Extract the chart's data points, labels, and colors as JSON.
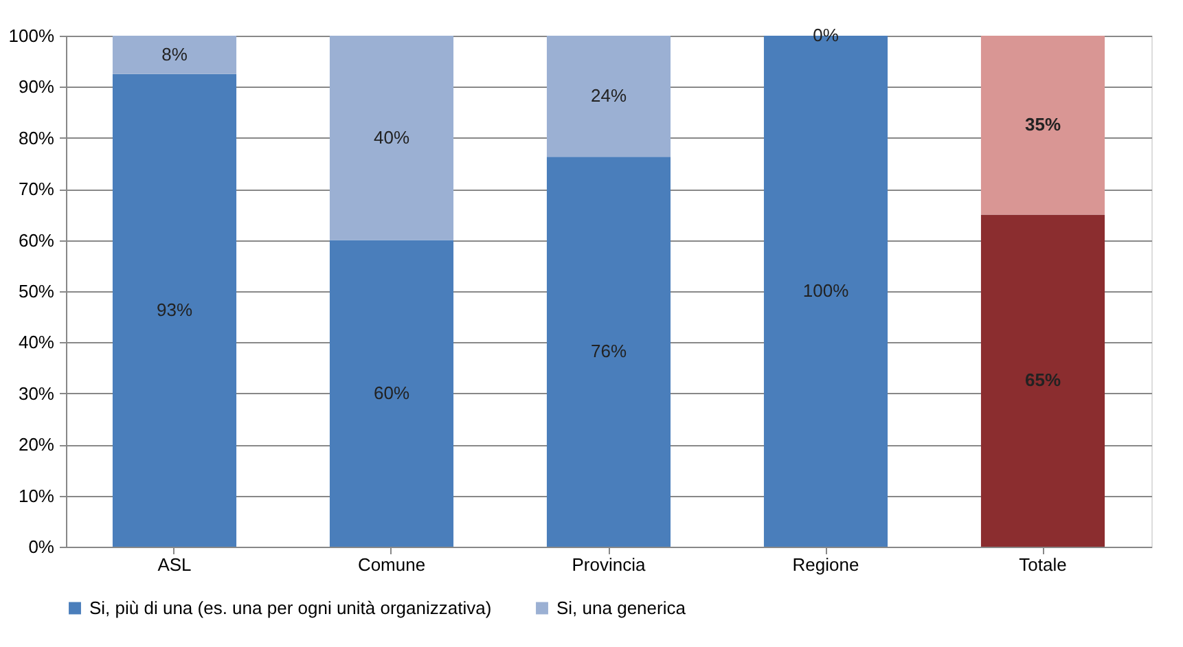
{
  "chart_data": {
    "type": "bar",
    "stacked": true,
    "categories": [
      "ASL",
      "Comune",
      "Provincia",
      "Regione",
      "Totale"
    ],
    "series": [
      {
        "name": "Si, più di una (es. una per ogni unità organizzativa)",
        "color": "#4a7ebb",
        "colors": [
          "#4a7ebb",
          "#4a7ebb",
          "#4a7ebb",
          "#4a7ebb",
          "#8b2d2f"
        ],
        "values": [
          92.5,
          60,
          76.3,
          100,
          65
        ],
        "value_labels": [
          "93%",
          "60%",
          "76%",
          "100%",
          "65%"
        ]
      },
      {
        "name": "Si, una generica",
        "color": "#9bb0d3",
        "colors": [
          "#9bb0d3",
          "#9bb0d3",
          "#9bb0d3",
          "#9bb0d3",
          "#d99694"
        ],
        "values": [
          7.5,
          40,
          23.7,
          0,
          35
        ],
        "value_labels": [
          "8%",
          "40%",
          "24%",
          "0%",
          "35%"
        ]
      }
    ],
    "ylim": [
      0,
      100
    ],
    "yticks": [
      {
        "value": 0,
        "label": "0%"
      },
      {
        "value": 10,
        "label": "10%"
      },
      {
        "value": 20,
        "label": "20%"
      },
      {
        "value": 30,
        "label": "30%"
      },
      {
        "value": 40,
        "label": "40%"
      },
      {
        "value": 50,
        "label": "50%"
      },
      {
        "value": 60,
        "label": "60%"
      },
      {
        "value": 70,
        "label": "70%"
      },
      {
        "value": 80,
        "label": "80%"
      },
      {
        "value": 90,
        "label": "90%"
      },
      {
        "value": 100,
        "label": "100%"
      }
    ],
    "grid": "y",
    "legend": "bottom"
  }
}
